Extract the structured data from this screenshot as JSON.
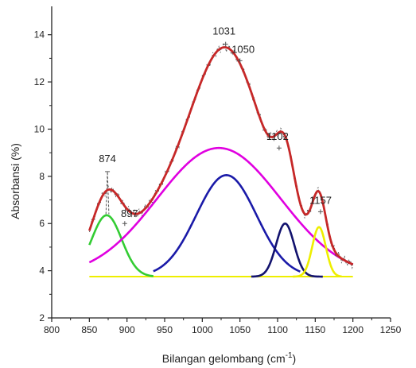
{
  "chart_data": {
    "type": "line",
    "xlabel": "Bilangan gelombang (cm",
    "xlabel_sup": "-1",
    "xlabel_tail": ")",
    "ylabel": "Absorbansi (%)",
    "xlim": [
      800,
      1250
    ],
    "ylim": [
      2,
      15
    ],
    "x_ticks": [
      800,
      850,
      900,
      950,
      1000,
      1050,
      1100,
      1150,
      1200,
      1250
    ],
    "y_ticks": [
      2,
      4,
      6,
      8,
      10,
      12,
      14
    ],
    "grid": false,
    "baseline": 3.75,
    "colors": {
      "fit_envelope": "#c62828",
      "gauss_broad": "#e000e0",
      "gauss_main": "#1a1aa8",
      "gauss_left": "#33cc33",
      "gauss_1102": "#12126e",
      "gauss_1157": "#eeee00",
      "baseline": "#eeee00",
      "raw": "#555555",
      "axis": "#222222"
    },
    "series": [
      {
        "key": "gauss_left",
        "amp": 2.6,
        "center": 873,
        "width": 20,
        "xrange": [
          850,
          935
        ]
      },
      {
        "key": "gauss_broad",
        "amp": 5.45,
        "center": 1022,
        "width": 82,
        "xrange": [
          850,
          1200
        ]
      },
      {
        "key": "gauss_main",
        "amp": 4.3,
        "center": 1032,
        "width": 40,
        "xrange": [
          935,
          1130
        ]
      },
      {
        "key": "gauss_1102",
        "amp": 2.25,
        "center": 1110,
        "width": 12,
        "xrange": [
          1065,
          1160
        ]
      },
      {
        "key": "gauss_1157",
        "amp": 2.1,
        "center": 1155,
        "width": 9,
        "xrange": [
          1120,
          1185
        ]
      }
    ],
    "raw_spikes": [
      {
        "x": 872,
        "y": 6.4
      },
      {
        "x": 874,
        "y": 8.2
      },
      {
        "x": 876,
        "y": 6.4
      },
      {
        "x": 897,
        "y": 6.0
      },
      {
        "x": 1031,
        "y": 13.6
      },
      {
        "x": 1050,
        "y": 12.9
      },
      {
        "x": 1102,
        "y": 9.2
      },
      {
        "x": 1157,
        "y": 6.5
      }
    ],
    "annotations": [
      {
        "text": "874",
        "x": 874,
        "y": 8.2
      },
      {
        "text": "897",
        "x": 897,
        "y": 6.0
      },
      {
        "text": "1031",
        "x": 1031,
        "y": 13.6
      },
      {
        "text": "1050",
        "x": 1050,
        "y": 12.9
      },
      {
        "text": "1102",
        "x": 1102,
        "y": 9.2
      },
      {
        "text": "1157",
        "x": 1157,
        "y": 6.5
      }
    ]
  }
}
